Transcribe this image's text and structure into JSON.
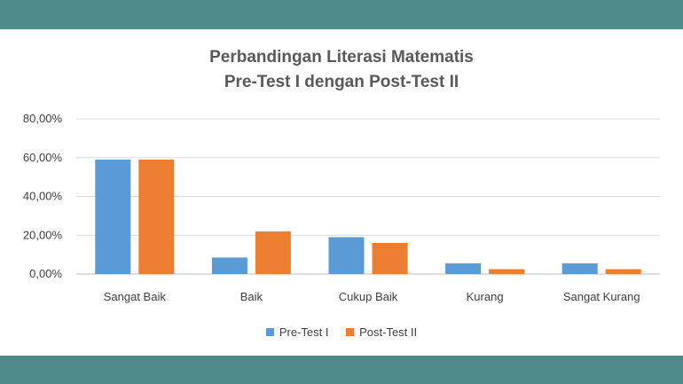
{
  "chart_data": {
    "type": "bar",
    "title_line1": "Perbandingan Literasi Matematis",
    "title_line2": "Pre-Test I dengan Post-Test II",
    "categories": [
      "Sangat Baik",
      "Baik",
      "Cukup Baik",
      "Kurang",
      "Sangat Kurang"
    ],
    "series": [
      {
        "name": "Pre-Test I",
        "color": "#5b9bd5",
        "values": [
          59,
          8.5,
          19,
          5.5,
          5.5
        ]
      },
      {
        "name": "Post-Test II",
        "color": "#ed7d31",
        "values": [
          59,
          22,
          16,
          2.5,
          2.5
        ]
      }
    ],
    "ylim": [
      0,
      80
    ],
    "yticks": [
      "0,00%",
      "20,00%",
      "40,00%",
      "60,00%",
      "80,00%"
    ],
    "ytick_values": [
      0,
      20,
      40,
      60,
      80
    ],
    "grid": true,
    "legend_position": "bottom"
  }
}
